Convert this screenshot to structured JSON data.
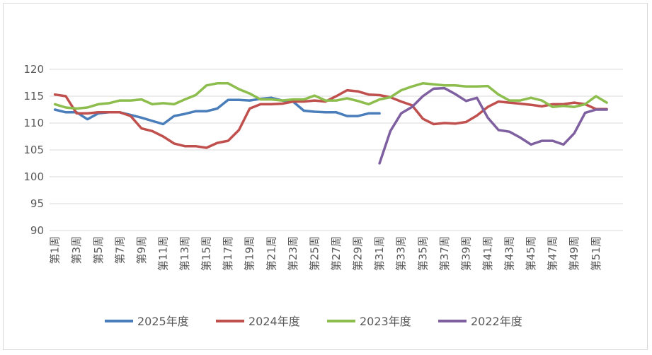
{
  "chart_data": {
    "type": "line",
    "ylim": [
      90,
      120
    ],
    "yticks": [
      90,
      95,
      100,
      105,
      110,
      115,
      120
    ],
    "x_tick_labels": [
      "第1周",
      "第3周",
      "第5周",
      "第7周",
      "第9周",
      "第11周",
      "第13周",
      "第15周",
      "第17周",
      "第19周",
      "第21周",
      "第23周",
      "第25周",
      "第27周",
      "第29周",
      "第31周",
      "第33周",
      "第35周",
      "第37周",
      "第39周",
      "第41周",
      "第43周",
      "第45周",
      "第47周",
      "第49周",
      "第51周"
    ],
    "legend_position": "bottom",
    "series": [
      {
        "name": "2025年度",
        "color": "#4a7ebb",
        "start_week": 1,
        "values": [
          112.5,
          112.0,
          112.0,
          110.7,
          111.8,
          112.0,
          112.0,
          111.5,
          111.0,
          110.4,
          109.8,
          111.3,
          111.7,
          112.2,
          112.2,
          112.7,
          114.3,
          114.3,
          114.2,
          114.5,
          114.7,
          114.2,
          114.0,
          112.3,
          112.1,
          112.0,
          112.0,
          111.3,
          111.3,
          111.8,
          111.8
        ]
      },
      {
        "name": "2024年度",
        "color": "#c0504d",
        "start_week": 1,
        "values": [
          115.3,
          115.0,
          111.8,
          111.8,
          112.0,
          112.0,
          112.0,
          111.3,
          109.0,
          108.5,
          107.5,
          106.2,
          105.7,
          105.7,
          105.4,
          106.3,
          106.7,
          108.7,
          112.7,
          113.5,
          113.5,
          113.6,
          114.0,
          114.0,
          114.2,
          114.0,
          115.0,
          116.1,
          115.9,
          115.3,
          115.2,
          114.8,
          114.0,
          113.3,
          110.8,
          109.8,
          110.0,
          109.9,
          110.2,
          111.4,
          113.0,
          114.0,
          113.8,
          113.6,
          113.4,
          113.1,
          113.5,
          113.5,
          113.8,
          113.5,
          112.6,
          112.6
        ]
      },
      {
        "name": "2023年度",
        "color": "#8cbd4d",
        "start_week": 1,
        "values": [
          113.5,
          112.9,
          112.7,
          112.9,
          113.5,
          113.7,
          114.2,
          114.2,
          114.4,
          113.5,
          113.7,
          113.5,
          114.4,
          115.2,
          117.0,
          117.4,
          117.4,
          116.3,
          115.5,
          114.4,
          114.4,
          114.2,
          114.4,
          114.4,
          115.1,
          114.2,
          114.2,
          114.6,
          114.1,
          113.5,
          114.4,
          114.8,
          116.1,
          116.8,
          117.4,
          117.2,
          117.0,
          117.0,
          116.8,
          116.8,
          116.9,
          115.3,
          114.2,
          114.2,
          114.7,
          114.2,
          113.0,
          113.2,
          113.0,
          113.5,
          115.0,
          113.8
        ]
      },
      {
        "name": "2022年度",
        "color": "#7e5fa0",
        "start_week": 31,
        "values": [
          102.5,
          108.5,
          111.8,
          113.0,
          115.0,
          116.4,
          116.5,
          115.4,
          114.1,
          114.7,
          111.0,
          108.7,
          108.4,
          107.3,
          106.0,
          106.7,
          106.7,
          106.0,
          108.1,
          111.9,
          112.5,
          112.5
        ]
      }
    ]
  }
}
